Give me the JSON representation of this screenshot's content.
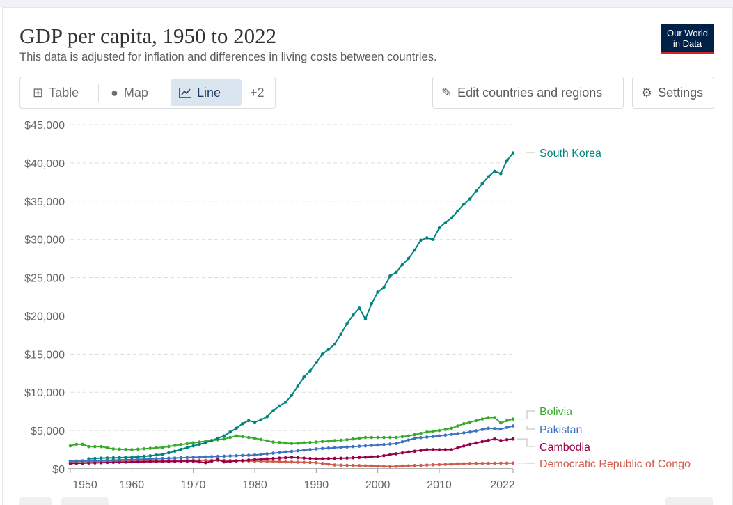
{
  "header": {
    "title": "GDP per capita, 1950 to 2022",
    "subtitle": "This data is adjusted for inflation and differences in living costs between countries.",
    "logo": "Our World in Data"
  },
  "tabs": [
    {
      "label": "Table",
      "icon": "table-icon"
    },
    {
      "label": "Map",
      "icon": "globe-icon"
    },
    {
      "label": "Line",
      "icon": "line-chart-icon"
    },
    {
      "label": "+2"
    }
  ],
  "buttons": {
    "edit": "Edit countries and regions",
    "settings": "Settings"
  },
  "chart_data": {
    "type": "line",
    "title": "GDP per capita, 1950 to 2022",
    "xlim": [
      1950,
      2022
    ],
    "ylim": [
      0,
      45000
    ],
    "yticks": [
      0,
      5000,
      10000,
      15000,
      20000,
      25000,
      30000,
      35000,
      40000,
      45000
    ],
    "ytick_labels": [
      "$0",
      "$5,000",
      "$10,000",
      "$15,000",
      "$20,000",
      "$25,000",
      "$30,000",
      "$35,000",
      "$40,000",
      "$45,000"
    ],
    "xticks": [
      1950,
      1960,
      1970,
      1980,
      1990,
      2000,
      2010,
      2022
    ],
    "xtick_labels": [
      "1950",
      "1960",
      "1970",
      "1980",
      "1990",
      "2000",
      "2010",
      "2022"
    ],
    "grid": "horizontal-dashed",
    "legend": "right-end-labels",
    "series": [
      {
        "name": "South Korea",
        "color": "#00847e",
        "points": [
          [
            1953,
            1300
          ],
          [
            1955,
            1400
          ],
          [
            1960,
            1500
          ],
          [
            1963,
            1700
          ],
          [
            1965,
            1900
          ],
          [
            1967,
            2300
          ],
          [
            1970,
            3000
          ],
          [
            1972,
            3400
          ],
          [
            1975,
            4300
          ],
          [
            1977,
            5300
          ],
          [
            1978,
            5900
          ],
          [
            1979,
            6300
          ],
          [
            1980,
            6100
          ],
          [
            1981,
            6400
          ],
          [
            1982,
            6800
          ],
          [
            1983,
            7600
          ],
          [
            1984,
            8200
          ],
          [
            1985,
            8700
          ],
          [
            1986,
            9600
          ],
          [
            1987,
            10800
          ],
          [
            1988,
            12000
          ],
          [
            1989,
            12800
          ],
          [
            1990,
            13900
          ],
          [
            1991,
            15000
          ],
          [
            1992,
            15600
          ],
          [
            1993,
            16300
          ],
          [
            1994,
            17600
          ],
          [
            1995,
            19000
          ],
          [
            1996,
            20100
          ],
          [
            1997,
            21000
          ],
          [
            1998,
            19600
          ],
          [
            1999,
            21600
          ],
          [
            2000,
            23100
          ],
          [
            2001,
            23700
          ],
          [
            2002,
            25200
          ],
          [
            2003,
            25700
          ],
          [
            2004,
            26700
          ],
          [
            2005,
            27500
          ],
          [
            2006,
            28600
          ],
          [
            2007,
            29900
          ],
          [
            2008,
            30200
          ],
          [
            2009,
            30000
          ],
          [
            2010,
            31500
          ],
          [
            2011,
            32200
          ],
          [
            2012,
            32800
          ],
          [
            2013,
            33700
          ],
          [
            2014,
            34600
          ],
          [
            2015,
            35300
          ],
          [
            2016,
            36300
          ],
          [
            2017,
            37300
          ],
          [
            2018,
            38200
          ],
          [
            2019,
            38900
          ],
          [
            2020,
            38600
          ],
          [
            2021,
            40300
          ],
          [
            2022,
            41300
          ]
        ]
      },
      {
        "name": "Bolivia",
        "color": "#38aa2e",
        "points": [
          [
            1950,
            3000
          ],
          [
            1951,
            3200
          ],
          [
            1952,
            3200
          ],
          [
            1953,
            2900
          ],
          [
            1955,
            2900
          ],
          [
            1957,
            2600
          ],
          [
            1960,
            2500
          ],
          [
            1965,
            2800
          ],
          [
            1970,
            3400
          ],
          [
            1975,
            3900
          ],
          [
            1977,
            4300
          ],
          [
            1978,
            4200
          ],
          [
            1980,
            4000
          ],
          [
            1983,
            3500
          ],
          [
            1986,
            3300
          ],
          [
            1990,
            3500
          ],
          [
            1995,
            3800
          ],
          [
            1998,
            4100
          ],
          [
            2003,
            4100
          ],
          [
            2005,
            4300
          ],
          [
            2008,
            4800
          ],
          [
            2010,
            5000
          ],
          [
            2012,
            5300
          ],
          [
            2014,
            5900
          ],
          [
            2016,
            6300
          ],
          [
            2018,
            6700
          ],
          [
            2019,
            6700
          ],
          [
            2020,
            6000
          ],
          [
            2021,
            6300
          ],
          [
            2022,
            6500
          ]
        ]
      },
      {
        "name": "Pakistan",
        "color": "#3c72c4",
        "points": [
          [
            1950,
            1000
          ],
          [
            1960,
            1200
          ],
          [
            1970,
            1500
          ],
          [
            1980,
            1800
          ],
          [
            1990,
            2600
          ],
          [
            2000,
            3100
          ],
          [
            2003,
            3300
          ],
          [
            2006,
            4000
          ],
          [
            2010,
            4300
          ],
          [
            2015,
            4800
          ],
          [
            2018,
            5300
          ],
          [
            2020,
            5200
          ],
          [
            2022,
            5600
          ]
        ]
      },
      {
        "name": "Cambodia",
        "color": "#970046",
        "points": [
          [
            1950,
            700
          ],
          [
            1960,
            900
          ],
          [
            1970,
            1000
          ],
          [
            1972,
            800
          ],
          [
            1974,
            1200
          ],
          [
            1975,
            900
          ],
          [
            1980,
            1200
          ],
          [
            1986,
            1500
          ],
          [
            1990,
            1300
          ],
          [
            1995,
            1400
          ],
          [
            2000,
            1600
          ],
          [
            2005,
            2200
          ],
          [
            2008,
            2500
          ],
          [
            2012,
            2500
          ],
          [
            2015,
            3200
          ],
          [
            2019,
            3900
          ],
          [
            2020,
            3700
          ],
          [
            2022,
            3900
          ]
        ]
      },
      {
        "name": "Democratic Republic of Congo",
        "color": "#d05a4a",
        "points": [
          [
            1950,
            900
          ],
          [
            1960,
            1100
          ],
          [
            1975,
            1100
          ],
          [
            1985,
            900
          ],
          [
            1990,
            800
          ],
          [
            1993,
            500
          ],
          [
            2000,
            350
          ],
          [
            2002,
            300
          ],
          [
            2010,
            550
          ],
          [
            2015,
            700
          ],
          [
            2022,
            750
          ]
        ]
      }
    ]
  }
}
